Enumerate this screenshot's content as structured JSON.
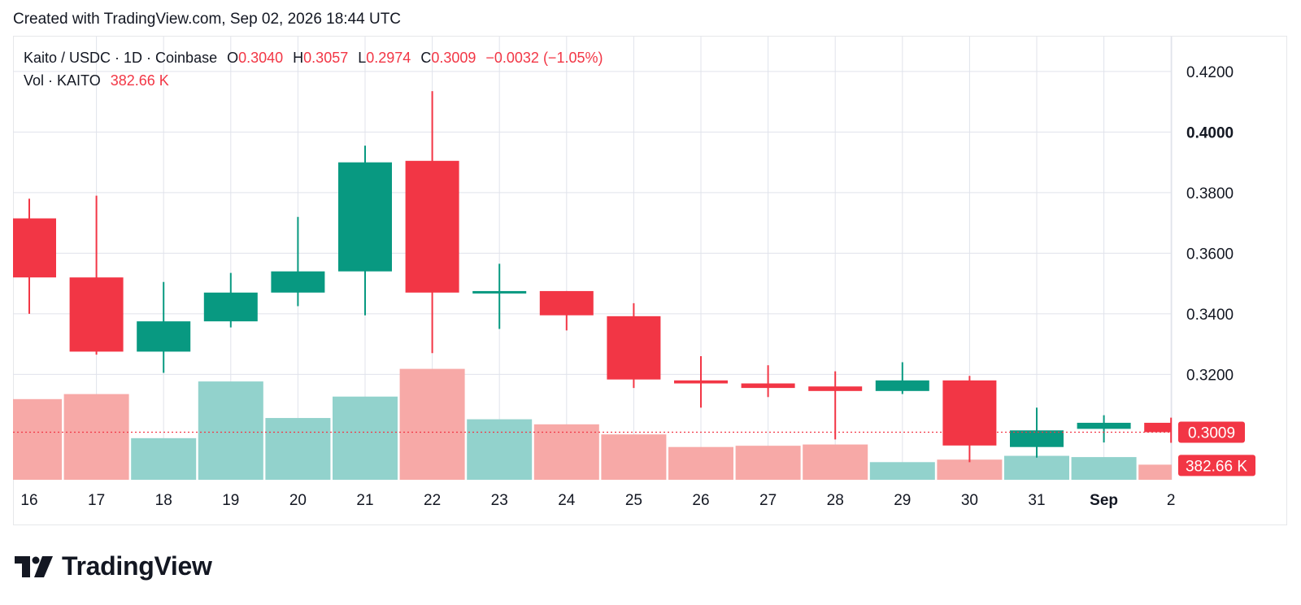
{
  "header": {
    "created_text": "Created with TradingView.com, Sep 02, 2026 18:44 UTC"
  },
  "legend": {
    "symbol": "Kaito / USDC · 1D · Coinbase",
    "open_label": "O",
    "open_value": "0.3040",
    "high_label": "H",
    "high_value": "0.3057",
    "low_label": "L",
    "low_value": "0.2974",
    "close_label": "C",
    "close_value": "0.3009",
    "change": "−0.0032 (−1.05%)",
    "vol_label": "Vol · KAITO",
    "vol_value": "382.66 K"
  },
  "footer": {
    "brand": "TradingView"
  },
  "colors": {
    "up": "#089981",
    "down": "#f23645",
    "vol_up": "#92d2cc",
    "vol_down": "#f7a9a7",
    "grid": "#e0e3eb",
    "text": "#131722"
  },
  "chart_data": {
    "type": "candlestick",
    "title": "Kaito / USDC · 1D · Coinbase",
    "x_labels": [
      "16",
      "17",
      "18",
      "19",
      "20",
      "21",
      "22",
      "23",
      "24",
      "25",
      "26",
      "27",
      "28",
      "29",
      "30",
      "31",
      "Sep",
      "2"
    ],
    "x_bold": [
      "Sep"
    ],
    "y_ticks": [
      "0.4200",
      "0.4000",
      "0.3800",
      "0.3600",
      "0.3400",
      "0.3200"
    ],
    "y_bold": [
      "0.4000"
    ],
    "ylim": [
      0.2825,
      0.4275
    ],
    "candles": [
      {
        "date": "16",
        "open": 0.3715,
        "high": 0.378,
        "low": 0.34,
        "close": 0.352,
        "volume": 0.64
      },
      {
        "date": "17",
        "open": 0.352,
        "high": 0.379,
        "low": 0.3265,
        "close": 0.3275,
        "volume": 0.68
      },
      {
        "date": "18",
        "open": 0.3275,
        "high": 0.3505,
        "low": 0.3205,
        "close": 0.3375,
        "volume": 0.33
      },
      {
        "date": "19",
        "open": 0.3375,
        "high": 0.3535,
        "low": 0.3355,
        "close": 0.347,
        "volume": 0.78
      },
      {
        "date": "20",
        "open": 0.347,
        "high": 0.372,
        "low": 0.3425,
        "close": 0.354,
        "volume": 0.49
      },
      {
        "date": "21",
        "open": 0.354,
        "high": 0.3955,
        "low": 0.3395,
        "close": 0.39,
        "volume": 0.66
      },
      {
        "date": "22",
        "open": 0.3905,
        "high": 0.4135,
        "low": 0.327,
        "close": 0.347,
        "volume": 0.88
      },
      {
        "date": "23",
        "open": 0.347,
        "high": 0.3565,
        "low": 0.335,
        "close": 0.3475,
        "volume": 0.48
      },
      {
        "date": "24",
        "open": 0.3475,
        "high": 0.3475,
        "low": 0.3345,
        "close": 0.3395,
        "volume": 0.44
      },
      {
        "date": "25",
        "open": 0.3392,
        "high": 0.3435,
        "low": 0.3155,
        "close": 0.3183,
        "volume": 0.36
      },
      {
        "date": "26",
        "open": 0.318,
        "high": 0.326,
        "low": 0.309,
        "close": 0.317,
        "volume": 0.26
      },
      {
        "date": "27",
        "open": 0.317,
        "high": 0.323,
        "low": 0.3125,
        "close": 0.3155,
        "volume": 0.27
      },
      {
        "date": "28",
        "open": 0.316,
        "high": 0.321,
        "low": 0.2985,
        "close": 0.3145,
        "volume": 0.28
      },
      {
        "date": "29",
        "open": 0.3145,
        "high": 0.324,
        "low": 0.3135,
        "close": 0.318,
        "volume": 0.14
      },
      {
        "date": "30",
        "open": 0.318,
        "high": 0.3195,
        "low": 0.291,
        "close": 0.2965,
        "volume": 0.16
      },
      {
        "date": "31",
        "open": 0.296,
        "high": 0.309,
        "low": 0.2925,
        "close": 0.3015,
        "volume": 0.19
      },
      {
        "date": "Sep",
        "open": 0.302,
        "high": 0.3065,
        "low": 0.2975,
        "close": 0.304,
        "volume": 0.18
      },
      {
        "date": "2",
        "open": 0.304,
        "high": 0.3057,
        "low": 0.2974,
        "close": 0.3009,
        "volume": 0.12
      }
    ],
    "last_price": 0.3009,
    "last_price_label": "0.3009",
    "last_volume_label": "382.66 K",
    "grid": true
  }
}
